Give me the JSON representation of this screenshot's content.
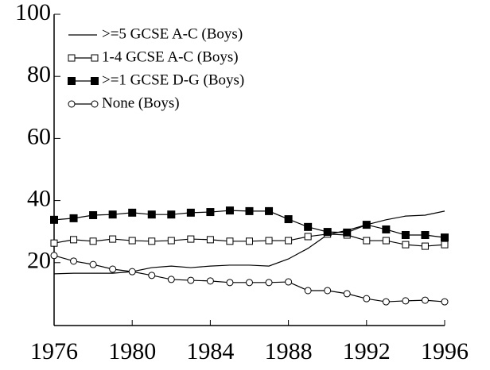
{
  "chart_data": {
    "type": "line",
    "x": [
      1976,
      1977,
      1978,
      1979,
      1980,
      1981,
      1982,
      1983,
      1984,
      1985,
      1986,
      1987,
      1988,
      1989,
      1990,
      1991,
      1992,
      1993,
      1994,
      1995,
      1996
    ],
    "xlim": [
      1976,
      1996
    ],
    "xticks": [
      1976,
      1980,
      1984,
      1988,
      1992,
      1996
    ],
    "ylim": [
      0,
      100
    ],
    "yticks": [
      20,
      40,
      60,
      80,
      100
    ],
    "legend": "upper-left",
    "series": [
      {
        "name": ">=5 GCSE A-C (Boys)",
        "color": "#000000",
        "marker": "none",
        "values": [
          16.4,
          16.6,
          16.6,
          16.6,
          17.1,
          18.4,
          18.9,
          18.4,
          18.9,
          19.2,
          19.2,
          18.9,
          21.2,
          24.6,
          29.0,
          30.4,
          32.2,
          33.8,
          35.0,
          35.3,
          36.6
        ]
      },
      {
        "name": "1-4 GCSE A-C (Boys)",
        "color": "#000000",
        "marker": "square-open",
        "values": [
          26.3,
          27.4,
          26.9,
          27.6,
          27.1,
          26.9,
          27.1,
          27.6,
          27.4,
          26.9,
          26.9,
          27.1,
          27.1,
          28.4,
          29.2,
          28.9,
          27.1,
          27.1,
          25.8,
          25.3,
          25.8
        ]
      },
      {
        "name": ">=1 GCSE D-G (Boys)",
        "color": "#000000",
        "marker": "square-filled",
        "values": [
          33.8,
          34.3,
          35.3,
          35.5,
          36.1,
          35.5,
          35.5,
          36.1,
          36.3,
          36.8,
          36.6,
          36.6,
          34.0,
          31.5,
          29.9,
          29.7,
          32.2,
          30.7,
          28.9,
          28.9,
          28.1
        ]
      },
      {
        "name": "None (Boys)",
        "color": "#000000",
        "marker": "circle-open",
        "values": [
          22.3,
          20.5,
          19.4,
          17.9,
          17.1,
          15.9,
          14.6,
          14.3,
          14.1,
          13.6,
          13.6,
          13.6,
          13.8,
          11.0,
          11.0,
          10.0,
          8.4,
          7.4,
          7.7,
          7.9,
          7.4
        ]
      }
    ]
  }
}
